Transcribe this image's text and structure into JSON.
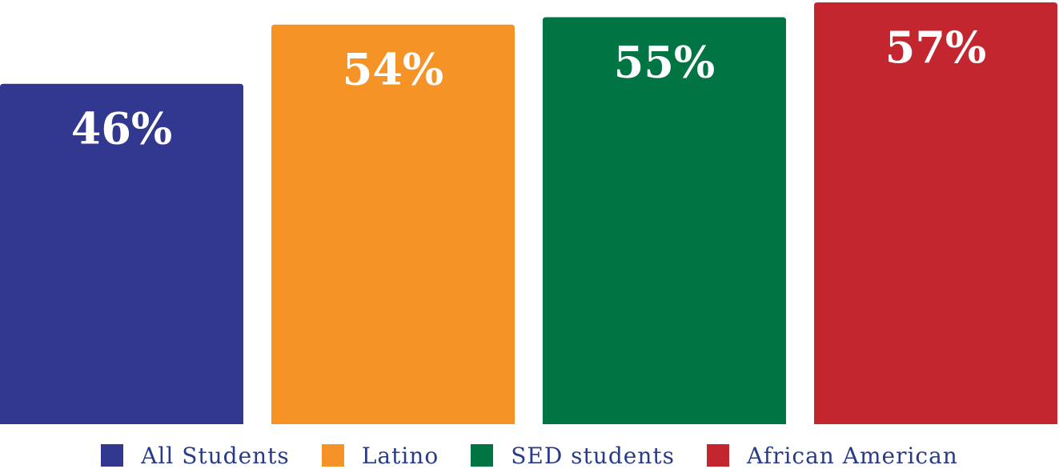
{
  "chart_data": {
    "type": "bar",
    "title": "",
    "xlabel": "",
    "ylabel": "",
    "ylim": [
      0,
      57
    ],
    "grid": false,
    "legend_position": "bottom-center",
    "categories": [
      "All Students",
      "Latino",
      "SED students",
      "African American"
    ],
    "values": [
      46,
      54,
      55,
      57
    ],
    "value_labels": [
      "46%",
      "54%",
      "55%",
      "57%"
    ],
    "colors": [
      "#32378f",
      "#f59327",
      "#007442",
      "#c4262f"
    ],
    "legend": [
      {
        "label": "All Students",
        "color": "#32378f"
      },
      {
        "label": "Latino",
        "color": "#f59327"
      },
      {
        "label": "SED students",
        "color": "#007442"
      },
      {
        "label": "African American",
        "color": "#c4262f"
      }
    ]
  }
}
